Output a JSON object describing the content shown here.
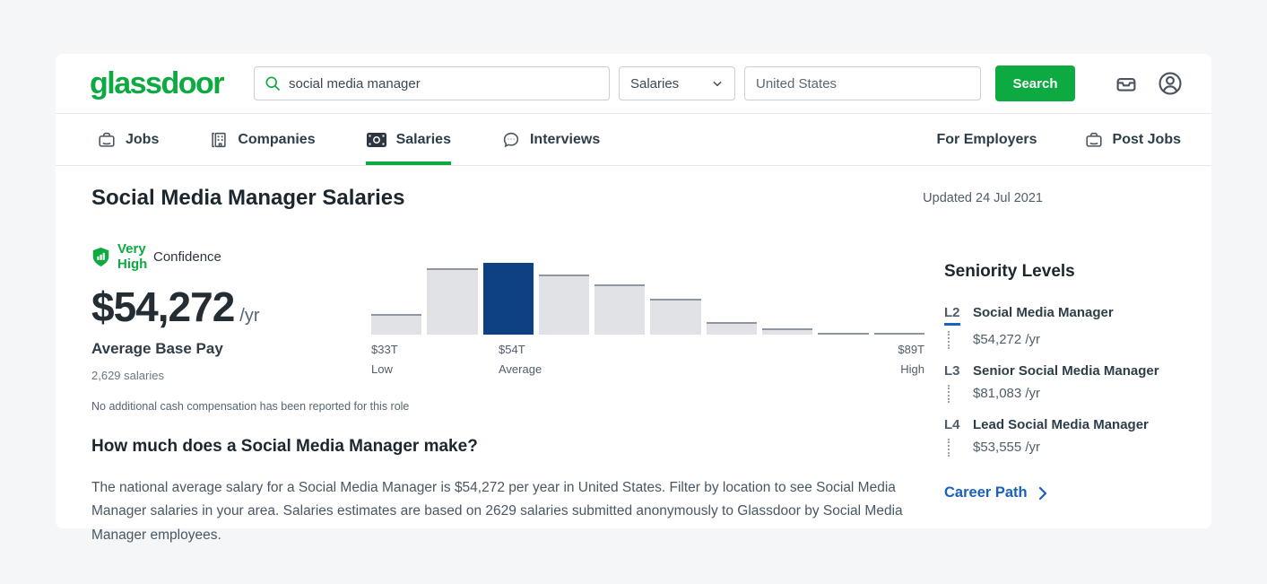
{
  "brand": {
    "logo_text": "glassdoor",
    "green": "#0caa41"
  },
  "header": {
    "search_input": {
      "value": "social media manager"
    },
    "category_select": {
      "value": "Salaries"
    },
    "location_input": {
      "value": "United States"
    },
    "search_button_label": "Search"
  },
  "nav": {
    "items": [
      {
        "label": "Jobs",
        "icon": "briefcase-icon",
        "active": false
      },
      {
        "label": "Companies",
        "icon": "building-icon",
        "active": false
      },
      {
        "label": "Salaries",
        "icon": "banknote-icon",
        "active": true
      },
      {
        "label": "Interviews",
        "icon": "chat-bubble-icon",
        "active": false
      }
    ],
    "for_employers_label": "For Employers",
    "post_jobs_label": "Post Jobs"
  },
  "main": {
    "page_title": "Social Media Manager Salaries",
    "updated_label": "Updated 24 Jul 2021",
    "confidence": {
      "level": "Very High",
      "label": "Confidence"
    },
    "average_pay": {
      "amount": "$54,272",
      "period": "/yr",
      "caption": "Average Base Pay",
      "sample": "2,629 salaries"
    },
    "note": "No additional cash compensation has been reported for this role",
    "question_heading": "How much does a Social Media Manager make?",
    "question_body": "The national average salary for a Social Media Manager is $54,272 per year in United States. Filter by location to see Social Media Manager salaries in your area. Salaries estimates are based on 2629 salaries submitted anonymously to Glassdoor by Social Media Manager employees."
  },
  "chart_data": {
    "type": "bar",
    "title": "Base pay distribution histogram",
    "values": [
      23,
      74,
      80,
      67,
      56,
      40,
      14,
      7,
      2,
      1
    ],
    "value_note": "relative bar heights in px, tallest bar = 80",
    "highlight_index": 2,
    "axis_labels": [
      {
        "value": "$33T",
        "label": "Low",
        "position": "left-under-bar-1"
      },
      {
        "value": "$54T",
        "label": "Average",
        "position": "under-bar-3"
      },
      {
        "value": "$89T",
        "label": "High",
        "position": "right-edge"
      }
    ],
    "grid": false,
    "legend": null,
    "colors": {
      "bar": "#e0e2e5",
      "bar_top_edge": "#8f96a0",
      "highlight": "#0d4184"
    }
  },
  "sidebar": {
    "heading": "Seniority Levels",
    "levels": [
      {
        "code": "L2",
        "title": "Social Media Manager",
        "salary": "$54,272 /yr"
      },
      {
        "code": "L3",
        "title": "Senior Social Media Manager",
        "salary": "$81,083 /yr"
      },
      {
        "code": "L4",
        "title": "Lead Social Media Manager",
        "salary": "$53,555 /yr"
      }
    ],
    "career_path_label": "Career Path"
  }
}
